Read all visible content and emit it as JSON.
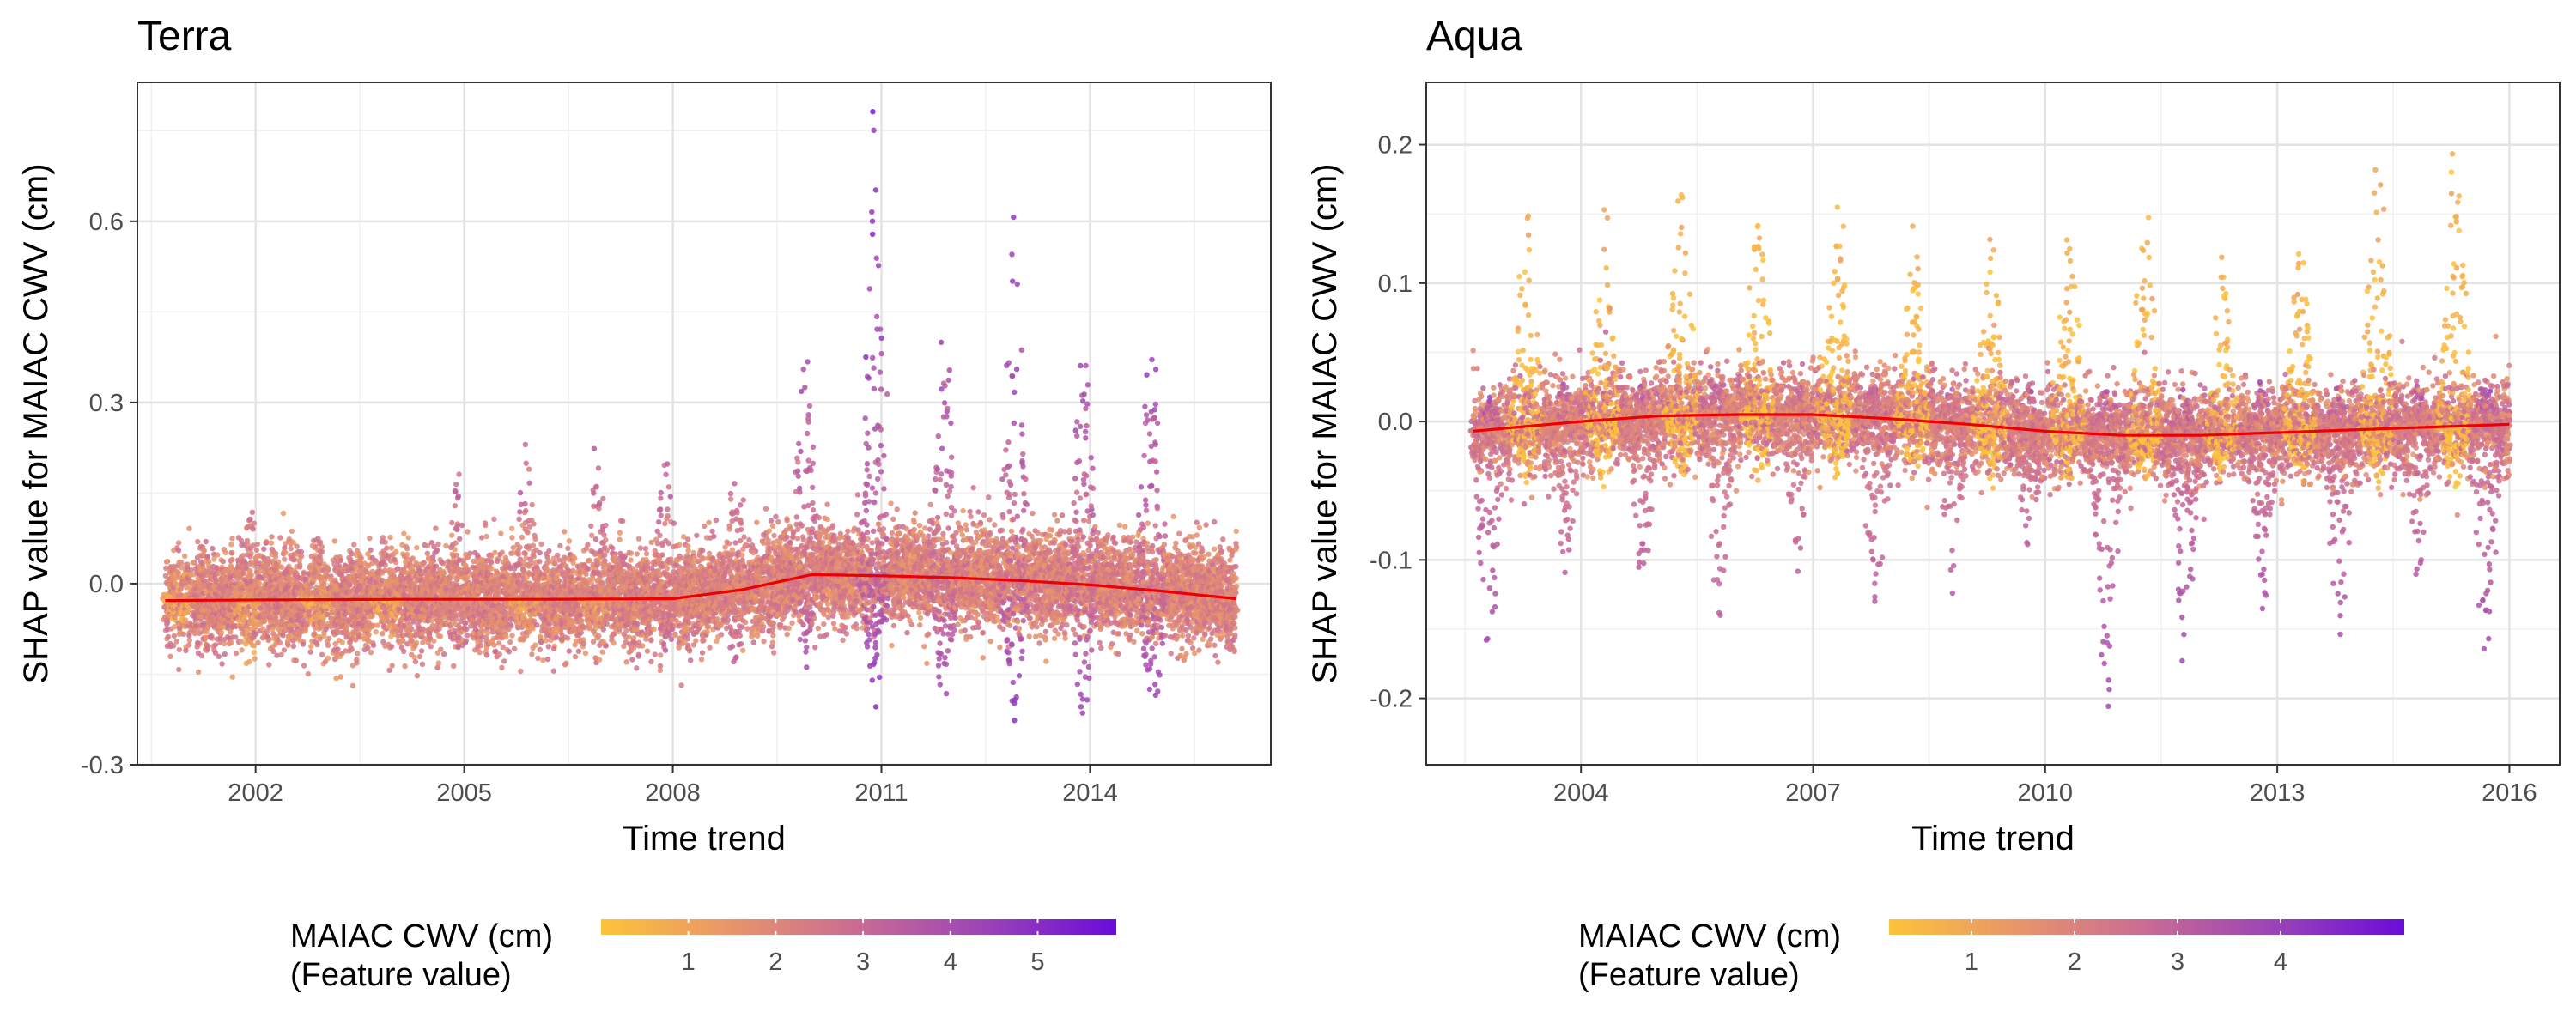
{
  "chart_data": [
    {
      "type": "scatter",
      "title": "Terra",
      "xlabel": "Time trend",
      "ylabel": "SHAP value for MAIAC CWV (cm)",
      "xlim": [
        2000.3,
        2016.6
      ],
      "ylim": [
        -0.3,
        0.83
      ],
      "x_ticks": [
        2002,
        2005,
        2008,
        2011,
        2014
      ],
      "y_ticks": [
        -0.3,
        0.0,
        0.3,
        0.6
      ],
      "y_tick_labels": [
        "-0.3",
        "0.0",
        "0.3",
        "0.6"
      ],
      "grid": true,
      "x_start": 2000.7,
      "x_end": 2016.1,
      "seasonal_pattern": [
        {
          "x": 2000.9,
          "low": -0.08,
          "high": 0.08,
          "feature": 2.2
        },
        {
          "x": 2001.9,
          "low": -0.15,
          "high": 0.17,
          "feature": 3.0
        },
        {
          "x": 2002.9,
          "low": -0.09,
          "high": 0.09,
          "feature": 2.4
        },
        {
          "x": 2003.9,
          "low": -0.1,
          "high": 0.12,
          "feature": 2.6
        },
        {
          "x": 2004.9,
          "low": -0.12,
          "high": 0.2,
          "feature": 3.2
        },
        {
          "x": 2005.9,
          "low": -0.1,
          "high": 0.24,
          "feature": 3.4
        },
        {
          "x": 2006.9,
          "low": -0.1,
          "high": 0.25,
          "feature": 3.5
        },
        {
          "x": 2007.9,
          "low": -0.12,
          "high": 0.27,
          "feature": 3.6
        },
        {
          "x": 2008.9,
          "low": -0.15,
          "high": 0.23,
          "feature": 3.5
        },
        {
          "x": 2009.9,
          "low": -0.15,
          "high": 0.42,
          "feature": 4.2
        },
        {
          "x": 2010.9,
          "low": -0.24,
          "high": 0.83,
          "feature": 5.4
        },
        {
          "x": 2011.9,
          "low": -0.23,
          "high": 0.49,
          "feature": 4.6
        },
        {
          "x": 2012.9,
          "low": -0.24,
          "high": 0.69,
          "feature": 5.0
        },
        {
          "x": 2013.9,
          "low": -0.24,
          "high": 0.5,
          "feature": 4.6
        },
        {
          "x": 2014.9,
          "low": -0.25,
          "high": 0.55,
          "feature": 4.9
        }
      ],
      "smooth_line": {
        "x": [
          2000.7,
          2002,
          2004,
          2006,
          2008,
          2009,
          2010,
          2011,
          2012,
          2013,
          2014,
          2015,
          2016.1
        ],
        "y": [
          -0.028,
          -0.027,
          -0.026,
          -0.026,
          -0.025,
          -0.01,
          0.015,
          0.013,
          0.01,
          0.005,
          -0.002,
          -0.012,
          -0.025
        ],
        "color": "#ee0000"
      },
      "legend": {
        "title_line1": "MAIAC CWV (cm)",
        "title_line2": "(Feature value)",
        "range": [
          0.0,
          5.9
        ],
        "ticks": [
          1,
          2,
          3,
          4,
          5
        ],
        "colors": [
          "#fdc33a",
          "#e8956a",
          "#c96b95",
          "#9a43b8",
          "#6a0cda"
        ],
        "position": "bottom"
      }
    },
    {
      "type": "scatter",
      "title": "Aqua",
      "xlabel": "Time trend",
      "ylabel": "SHAP value for MAIAC CWV (cm)",
      "xlim": [
        2002.0,
        2016.65
      ],
      "ylim": [
        -0.248,
        0.245
      ],
      "x_ticks": [
        2004,
        2007,
        2010,
        2013,
        2016
      ],
      "y_ticks": [
        -0.2,
        -0.1,
        0.0,
        0.1,
        0.2
      ],
      "y_tick_labels": [
        "-0.2",
        "-0.1",
        "0.0",
        "0.1",
        "0.2"
      ],
      "grid": true,
      "x_start": 2002.6,
      "x_end": 2016.0,
      "seasonal_pattern": [
        {
          "x": 2002.8,
          "low": -0.21,
          "high": 0.02,
          "feature": 4.0
        },
        {
          "x": 2003.3,
          "low": -0.05,
          "high": 0.17,
          "feature": 0.8
        },
        {
          "x": 2004.3,
          "low": -0.05,
          "high": 0.17,
          "feature": 0.8
        },
        {
          "x": 2005.3,
          "low": -0.05,
          "high": 0.19,
          "feature": 0.8
        },
        {
          "x": 2006.3,
          "low": -0.05,
          "high": 0.19,
          "feature": 0.8
        },
        {
          "x": 2007.3,
          "low": -0.05,
          "high": 0.18,
          "feature": 0.8
        },
        {
          "x": 2008.3,
          "low": -0.05,
          "high": 0.16,
          "feature": 0.8
        },
        {
          "x": 2009.3,
          "low": -0.05,
          "high": 0.16,
          "feature": 0.8
        },
        {
          "x": 2010.3,
          "low": -0.05,
          "high": 0.16,
          "feature": 0.8
        },
        {
          "x": 2011.3,
          "low": -0.05,
          "high": 0.17,
          "feature": 0.8
        },
        {
          "x": 2012.3,
          "low": -0.05,
          "high": 0.14,
          "feature": 0.8
        },
        {
          "x": 2013.3,
          "low": -0.05,
          "high": 0.15,
          "feature": 0.8
        },
        {
          "x": 2014.3,
          "low": -0.05,
          "high": 0.22,
          "feature": 0.8
        },
        {
          "x": 2015.3,
          "low": -0.05,
          "high": 0.22,
          "feature": 0.8
        },
        {
          "x": 2003.8,
          "low": -0.12,
          "high": 0.03,
          "feature": 3.2
        },
        {
          "x": 2004.8,
          "low": -0.13,
          "high": 0.03,
          "feature": 3.3
        },
        {
          "x": 2005.8,
          "low": -0.17,
          "high": 0.03,
          "feature": 3.3
        },
        {
          "x": 2006.8,
          "low": -0.12,
          "high": 0.03,
          "feature": 3.2
        },
        {
          "x": 2007.8,
          "low": -0.15,
          "high": 0.03,
          "feature": 3.3
        },
        {
          "x": 2008.8,
          "low": -0.14,
          "high": 0.03,
          "feature": 3.4
        },
        {
          "x": 2009.8,
          "low": -0.12,
          "high": 0.03,
          "feature": 3.5
        },
        {
          "x": 2010.8,
          "low": -0.23,
          "high": 0.03,
          "feature": 3.9
        },
        {
          "x": 2011.8,
          "low": -0.21,
          "high": 0.03,
          "feature": 4.1
        },
        {
          "x": 2012.8,
          "low": -0.15,
          "high": 0.03,
          "feature": 3.7
        },
        {
          "x": 2013.8,
          "low": -0.18,
          "high": 0.03,
          "feature": 3.8
        },
        {
          "x": 2014.8,
          "low": -0.13,
          "high": 0.03,
          "feature": 3.5
        },
        {
          "x": 2015.7,
          "low": -0.21,
          "high": 0.03,
          "feature": 4.0
        }
      ],
      "smooth_line": {
        "x": [
          2002.6,
          2004,
          2005,
          2006,
          2007,
          2008,
          2009,
          2010,
          2011,
          2012,
          2013,
          2014,
          2015,
          2016.0
        ],
        "y": [
          -0.007,
          0.0,
          0.004,
          0.005,
          0.005,
          0.002,
          -0.002,
          -0.007,
          -0.01,
          -0.01,
          -0.008,
          -0.006,
          -0.004,
          -0.002
        ],
        "color": "#ee0000"
      },
      "legend": {
        "title_line1": "MAIAC CWV (cm)",
        "title_line2": "(Feature value)",
        "range": [
          0.2,
          5.2
        ],
        "ticks": [
          1,
          2,
          3,
          4
        ],
        "colors": [
          "#fdc33a",
          "#e8956a",
          "#c96b95",
          "#9a43b8",
          "#6a0cda"
        ],
        "position": "bottom"
      }
    }
  ]
}
